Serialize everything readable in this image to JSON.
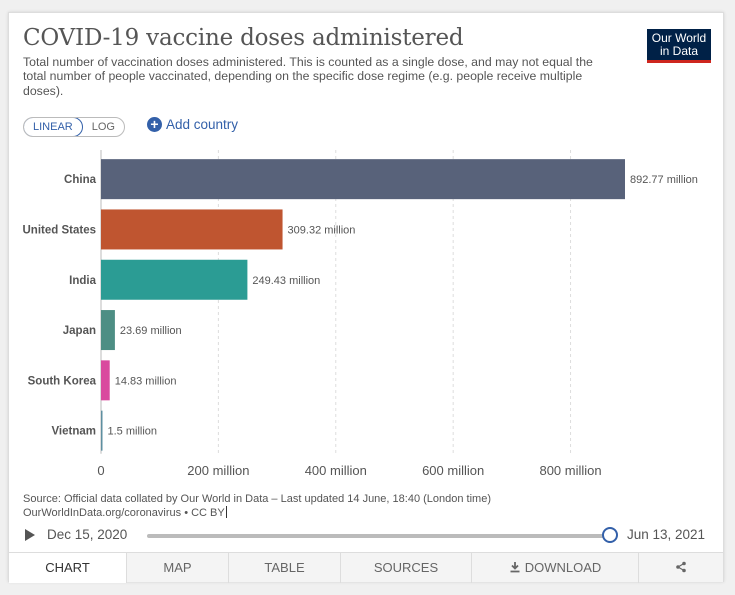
{
  "header": {
    "title": "COVID-19 vaccine doses administered",
    "subtitle": "Total number of vaccination doses administered. This is counted as a single dose, and may not equal the total number of people vaccinated, depending on the specific dose regime (e.g. people receive multiple doses).",
    "logo_line1": "Our World",
    "logo_line2": "in Data"
  },
  "controls": {
    "linear_label": "LINEAR",
    "log_label": "LOG",
    "add_country_label": "Add country",
    "scale_selected": "linear"
  },
  "chart_data": {
    "type": "bar",
    "orientation": "horizontal",
    "categories": [
      "China",
      "United States",
      "India",
      "Japan",
      "South Korea",
      "Vietnam"
    ],
    "values": [
      892.77,
      309.32,
      249.43,
      23.69,
      14.83,
      1.5
    ],
    "value_labels": [
      "892.77 million",
      "309.32 million",
      "249.43 million",
      "23.69 million",
      "14.83 million",
      "1.5 million"
    ],
    "colors": [
      "#58627a",
      "#bf5530",
      "#2b9c94",
      "#4d8e84",
      "#d94a9e",
      "#5e8fa0"
    ],
    "x_ticks": [
      0,
      200,
      400,
      600,
      800
    ],
    "x_tick_labels": [
      "0",
      "200 million",
      "400 million",
      "600 million",
      "800 million"
    ],
    "xlim": [
      0,
      892.77
    ],
    "grid": true,
    "title": "COVID-19 vaccine doses administered"
  },
  "footer": {
    "source_line1": "Source: Official data collated by Our World in Data – Last updated 14 June, 18:40 (London time)",
    "source_line2": "OurWorldInData.org/coronavirus • CC BY"
  },
  "timeline": {
    "start_date": "Dec 15, 2020",
    "end_date": "Jun 13, 2021"
  },
  "tabs": {
    "chart": "CHART",
    "map": "MAP",
    "table": "TABLE",
    "sources": "SOURCES",
    "download": "DOWNLOAD"
  }
}
